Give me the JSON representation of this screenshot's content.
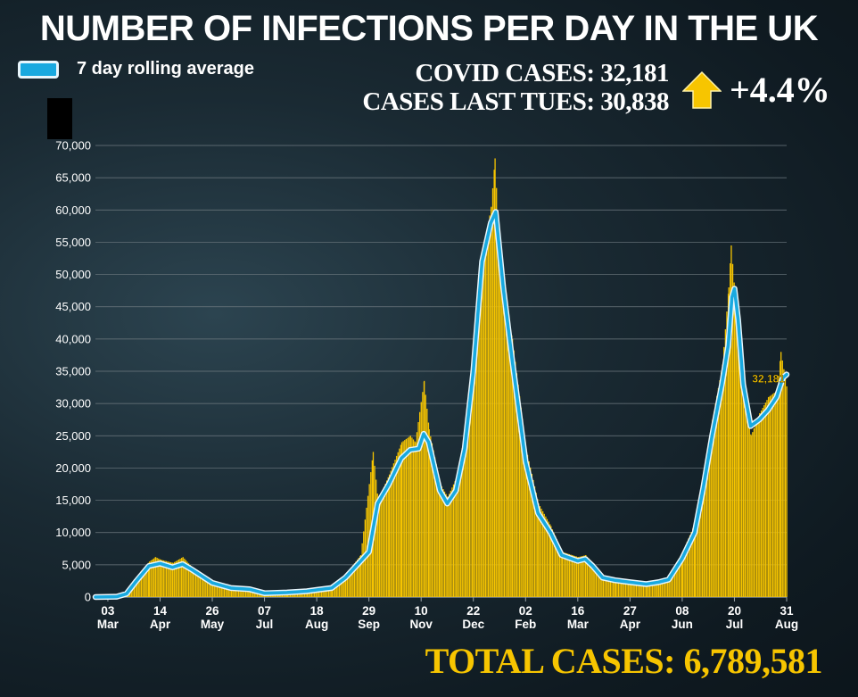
{
  "header": {
    "title": "NUMBER OF INFECTIONS PER DAY IN THE UK",
    "legend_label": "7 day rolling average",
    "covid_cases": "COVID CASES: 32,181",
    "cases_last_tues": "CASES LAST TUES: 30,838",
    "percent_change": "+4.4%",
    "arrow_icon": "up-arrow-icon",
    "total_cases": "TOTAL CASES: 6,789,581"
  },
  "colors": {
    "bars": "#f7c500",
    "average_line": "#19a9df",
    "average_outline": "#e8f6fc",
    "accent": "#f7c500"
  },
  "chart_data": {
    "type": "bar",
    "title": "NUMBER OF INFECTIONS PER DAY IN THE UK",
    "xlabel": "",
    "ylabel": "",
    "ylim": [
      0,
      70000
    ],
    "yticks": [
      0,
      5000,
      10000,
      15000,
      20000,
      25000,
      30000,
      35000,
      40000,
      45000,
      50000,
      55000,
      60000,
      65000,
      70000
    ],
    "ytick_labels": [
      "0",
      "5,000",
      "10,000",
      "15,000",
      "20,000",
      "25,000",
      "30,000",
      "35,000",
      "40,000",
      "45,000",
      "50,000",
      "55,000",
      "60,000",
      "65,000",
      "70,000"
    ],
    "grid": true,
    "x_range": [
      "2020-02-22",
      "2021-08-31"
    ],
    "x_ticks": [
      {
        "date": "2020-03-03",
        "day": "03",
        "month": "Mar"
      },
      {
        "date": "2020-04-14",
        "day": "14",
        "month": "Apr"
      },
      {
        "date": "2020-05-26",
        "day": "26",
        "month": "May"
      },
      {
        "date": "2020-07-07",
        "day": "07",
        "month": "Jul"
      },
      {
        "date": "2020-08-18",
        "day": "18",
        "month": "Aug"
      },
      {
        "date": "2020-09-29",
        "day": "29",
        "month": "Sep"
      },
      {
        "date": "2020-11-10",
        "day": "10",
        "month": "Nov"
      },
      {
        "date": "2020-12-22",
        "day": "22",
        "month": "Dec"
      },
      {
        "date": "2021-02-02",
        "day": "02",
        "month": "Feb"
      },
      {
        "date": "2021-03-16",
        "day": "16",
        "month": "Mar"
      },
      {
        "date": "2021-04-27",
        "day": "27",
        "month": "Apr"
      },
      {
        "date": "2021-06-08",
        "day": "08",
        "month": "Jun"
      },
      {
        "date": "2021-07-20",
        "day": "20",
        "month": "Jul"
      },
      {
        "date": "2021-08-31",
        "day": "31",
        "month": "Aug"
      }
    ],
    "series": [
      {
        "name": "7 day rolling average",
        "type": "line",
        "points": [
          [
            "2020-02-22",
            0
          ],
          [
            "2020-03-10",
            50
          ],
          [
            "2020-03-18",
            500
          ],
          [
            "2020-03-26",
            2500
          ],
          [
            "2020-04-05",
            4800
          ],
          [
            "2020-04-14",
            5200
          ],
          [
            "2020-04-24",
            4600
          ],
          [
            "2020-05-02",
            5100
          ],
          [
            "2020-05-10",
            4200
          ],
          [
            "2020-05-26",
            2200
          ],
          [
            "2020-06-10",
            1400
          ],
          [
            "2020-06-25",
            1200
          ],
          [
            "2020-07-07",
            600
          ],
          [
            "2020-07-25",
            700
          ],
          [
            "2020-08-10",
            900
          ],
          [
            "2020-08-18",
            1100
          ],
          [
            "2020-08-30",
            1400
          ],
          [
            "2020-09-10",
            3000
          ],
          [
            "2020-09-22",
            5500
          ],
          [
            "2020-09-29",
            7000
          ],
          [
            "2020-10-06",
            14500
          ],
          [
            "2020-10-15",
            17500
          ],
          [
            "2020-10-25",
            21500
          ],
          [
            "2020-11-01",
            22800
          ],
          [
            "2020-11-08",
            23000
          ],
          [
            "2020-11-12",
            25300
          ],
          [
            "2020-11-16",
            24000
          ],
          [
            "2020-11-25",
            16500
          ],
          [
            "2020-12-01",
            14500
          ],
          [
            "2020-12-08",
            16500
          ],
          [
            "2020-12-15",
            23000
          ],
          [
            "2020-12-22",
            35000
          ],
          [
            "2020-12-29",
            52000
          ],
          [
            "2021-01-05",
            58000
          ],
          [
            "2021-01-09",
            59700
          ],
          [
            "2021-01-15",
            48000
          ],
          [
            "2021-01-22",
            37000
          ],
          [
            "2021-02-02",
            21000
          ],
          [
            "2021-02-12",
            13000
          ],
          [
            "2021-02-22",
            10000
          ],
          [
            "2021-03-03",
            6500
          ],
          [
            "2021-03-16",
            5600
          ],
          [
            "2021-03-22",
            5900
          ],
          [
            "2021-03-28",
            4800
          ],
          [
            "2021-04-05",
            3000
          ],
          [
            "2021-04-15",
            2600
          ],
          [
            "2021-04-27",
            2300
          ],
          [
            "2021-05-10",
            2000
          ],
          [
            "2021-05-20",
            2300
          ],
          [
            "2021-05-28",
            2700
          ],
          [
            "2021-06-08",
            6000
          ],
          [
            "2021-06-18",
            10000
          ],
          [
            "2021-06-25",
            17000
          ],
          [
            "2021-07-02",
            25000
          ],
          [
            "2021-07-10",
            33000
          ],
          [
            "2021-07-15",
            39000
          ],
          [
            "2021-07-18",
            46500
          ],
          [
            "2021-07-20",
            47800
          ],
          [
            "2021-07-23",
            43000
          ],
          [
            "2021-07-27",
            33000
          ],
          [
            "2021-08-02",
            26500
          ],
          [
            "2021-08-09",
            27500
          ],
          [
            "2021-08-16",
            29000
          ],
          [
            "2021-08-23",
            31000
          ],
          [
            "2021-08-28",
            34000
          ],
          [
            "2021-08-31",
            34500
          ]
        ]
      },
      {
        "name": "daily cases",
        "type": "bar",
        "points": [
          [
            "2020-02-22",
            0
          ],
          [
            "2020-03-10",
            100
          ],
          [
            "2020-03-18",
            700
          ],
          [
            "2020-03-26",
            3000
          ],
          [
            "2020-04-05",
            5500
          ],
          [
            "2020-04-10",
            6200
          ],
          [
            "2020-04-14",
            5800
          ],
          [
            "2020-04-24",
            5300
          ],
          [
            "2020-05-02",
            6200
          ],
          [
            "2020-05-10",
            4500
          ],
          [
            "2020-05-26",
            2400
          ],
          [
            "2020-06-10",
            1500
          ],
          [
            "2020-06-25",
            1300
          ],
          [
            "2020-07-07",
            700
          ],
          [
            "2020-07-25",
            800
          ],
          [
            "2020-08-10",
            1000
          ],
          [
            "2020-08-18",
            1200
          ],
          [
            "2020-08-30",
            1600
          ],
          [
            "2020-09-10",
            3500
          ],
          [
            "2020-09-22",
            6500
          ],
          [
            "2020-10-02",
            22500
          ],
          [
            "2020-10-06",
            15000
          ],
          [
            "2020-10-15",
            19000
          ],
          [
            "2020-10-25",
            24000
          ],
          [
            "2020-11-01",
            25000
          ],
          [
            "2020-11-05",
            24000
          ],
          [
            "2020-11-12",
            33500
          ],
          [
            "2020-11-16",
            26000
          ],
          [
            "2020-11-25",
            17500
          ],
          [
            "2020-12-01",
            15500
          ],
          [
            "2020-12-08",
            18500
          ],
          [
            "2020-12-15",
            25500
          ],
          [
            "2020-12-22",
            38000
          ],
          [
            "2020-12-29",
            53000
          ],
          [
            "2021-01-05",
            60500
          ],
          [
            "2021-01-08",
            68000
          ],
          [
            "2021-01-12",
            52000
          ],
          [
            "2021-01-18",
            44000
          ],
          [
            "2021-01-22",
            40000
          ],
          [
            "2021-02-02",
            23000
          ],
          [
            "2021-02-12",
            14500
          ],
          [
            "2021-02-22",
            11000
          ],
          [
            "2021-03-03",
            7000
          ],
          [
            "2021-03-16",
            6200
          ],
          [
            "2021-03-22",
            6500
          ],
          [
            "2021-03-28",
            5200
          ],
          [
            "2021-04-05",
            3300
          ],
          [
            "2021-04-15",
            2900
          ],
          [
            "2021-04-27",
            2500
          ],
          [
            "2021-05-10",
            2200
          ],
          [
            "2021-05-20",
            2600
          ],
          [
            "2021-05-28",
            3200
          ],
          [
            "2021-06-08",
            7000
          ],
          [
            "2021-06-18",
            11500
          ],
          [
            "2021-06-25",
            19000
          ],
          [
            "2021-07-02",
            27500
          ],
          [
            "2021-07-10",
            36000
          ],
          [
            "2021-07-15",
            48000
          ],
          [
            "2021-07-17",
            54500
          ],
          [
            "2021-07-20",
            47000
          ],
          [
            "2021-07-23",
            41000
          ],
          [
            "2021-07-27",
            30000
          ],
          [
            "2021-08-02",
            25000
          ],
          [
            "2021-08-09",
            28500
          ],
          [
            "2021-08-16",
            31000
          ],
          [
            "2021-08-23",
            32000
          ],
          [
            "2021-08-26",
            38000
          ],
          [
            "2021-08-31",
            32181
          ]
        ]
      }
    ],
    "annotations": [
      {
        "text": "32,181",
        "date": "2021-08-31",
        "y": 32181
      }
    ]
  }
}
